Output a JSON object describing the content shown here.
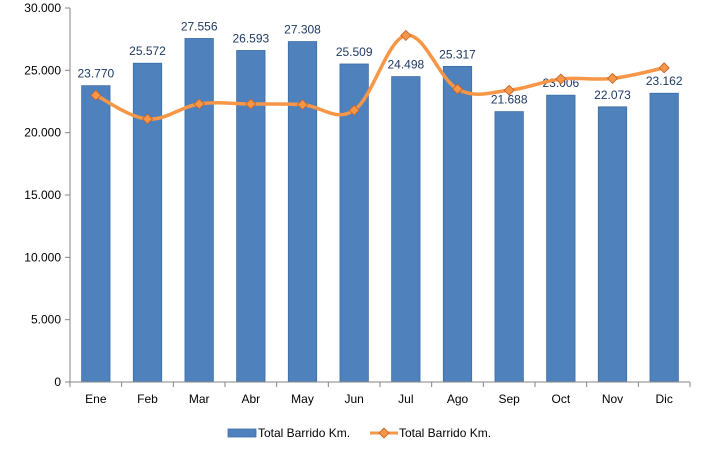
{
  "chart_data": {
    "type": "bar",
    "categories": [
      "Ene",
      "Feb",
      "Mar",
      "Abr",
      "May",
      "Jun",
      "Jul",
      "Ago",
      "Sep",
      "Oct",
      "Nov",
      "Dic"
    ],
    "series": [
      {
        "name": "Total Barrido Km.",
        "kind": "bar",
        "color": "#4F81BD",
        "values": [
          23770,
          25572,
          27556,
          26593,
          27308,
          25509,
          24498,
          25317,
          21688,
          23006,
          22073,
          23162
        ],
        "data_labels": [
          "23.770",
          "25.572",
          "27.556",
          "26.593",
          "27.308",
          "25.509",
          "24.498",
          "25.317",
          "21.688",
          "23.006",
          "22.073",
          "23.162"
        ]
      },
      {
        "name": "Total Barrido Km.",
        "kind": "line",
        "color": "#F79646",
        "marker": "diamond",
        "values": [
          23000,
          21100,
          22300,
          22300,
          22250,
          21800,
          27800,
          23500,
          23400,
          24300,
          24350,
          25200
        ]
      }
    ],
    "ylim": [
      0,
      30000
    ],
    "yticks": [
      0,
      5000,
      10000,
      15000,
      20000,
      25000,
      30000
    ],
    "ytick_labels": [
      "0",
      "5.000",
      "10.000",
      "15.000",
      "20.000",
      "25.000",
      "30.000"
    ],
    "xlabel": "",
    "ylabel": "",
    "title": "",
    "grid": false,
    "legend_position": "bottom"
  }
}
